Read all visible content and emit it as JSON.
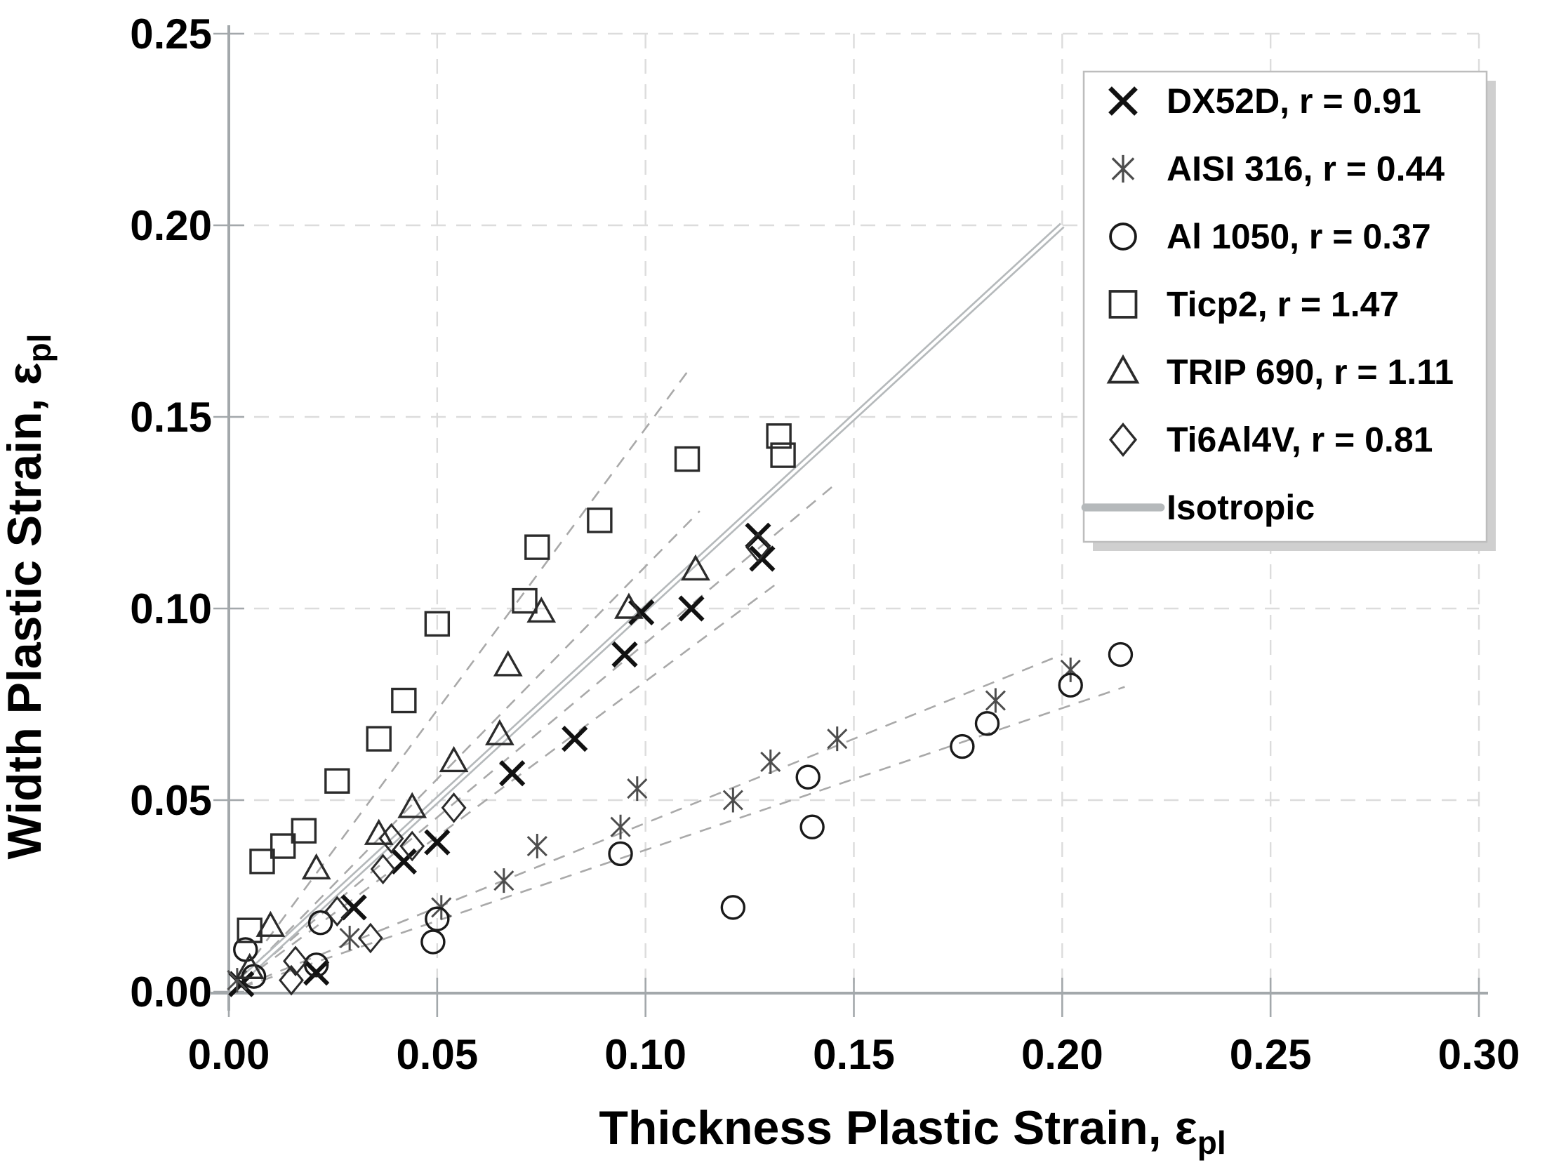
{
  "chart_data": {
    "type": "scatter",
    "title": "",
    "xlabel": {
      "text": "Thickness Plastic Strain, ε",
      "sub": "pl"
    },
    "ylabel": {
      "text": "Width Plastic Strain, ε",
      "sub": "pl"
    },
    "xlim": [
      0,
      0.3
    ],
    "ylim": [
      0,
      0.25
    ],
    "x_tick_values": [
      0,
      0.05,
      0.1,
      0.15,
      0.2,
      0.25,
      0.3
    ],
    "x_tick_labels": [
      "0.00",
      "0.05",
      "0.10",
      "0.15",
      "0.20",
      "0.25",
      "0.30"
    ],
    "y_tick_values": [
      0,
      0.05,
      0.1,
      0.15,
      0.2,
      0.25
    ],
    "y_tick_labels": [
      "0.00",
      "0.05",
      "0.10",
      "0.15",
      "0.20",
      "0.25"
    ],
    "grid": true,
    "legend_position": "top-right",
    "colors": {
      "axis": "#a3a8ab",
      "grid": "#dcdcdc",
      "trend": "#a9a9a9",
      "isotropic": "#b5b9bb",
      "legend_border": "#bdbdbd",
      "legend_shadow": "#cfcfcf",
      "background": "#ffffff"
    },
    "series": [
      {
        "name": "DX52D",
        "legend_label": "DX52D, r = 0.91",
        "r": 0.91,
        "marker": "x",
        "color": "#111111",
        "trend_x_start": 0.003,
        "trend_x_end": 0.145,
        "points": [
          [
            0.003,
            0.002
          ],
          [
            0.021,
            0.005
          ],
          [
            0.03,
            0.022
          ],
          [
            0.042,
            0.034
          ],
          [
            0.05,
            0.039
          ],
          [
            0.068,
            0.057
          ],
          [
            0.083,
            0.066
          ],
          [
            0.095,
            0.088
          ],
          [
            0.099,
            0.099
          ],
          [
            0.111,
            0.1
          ],
          [
            0.127,
            0.119
          ],
          [
            0.128,
            0.113
          ]
        ]
      },
      {
        "name": "AISI 316",
        "legend_label": "AISI 316, r = 0.44",
        "r": 0.44,
        "marker": "asterisk",
        "color": "#4d4d4d",
        "trend_x_start": 0.003,
        "trend_x_end": 0.2,
        "points": [
          [
            0.002,
            0.003
          ],
          [
            0.029,
            0.014
          ],
          [
            0.051,
            0.022
          ],
          [
            0.066,
            0.029
          ],
          [
            0.074,
            0.038
          ],
          [
            0.094,
            0.043
          ],
          [
            0.098,
            0.053
          ],
          [
            0.121,
            0.05
          ],
          [
            0.13,
            0.06
          ],
          [
            0.146,
            0.066
          ],
          [
            0.184,
            0.076
          ],
          [
            0.202,
            0.084
          ]
        ]
      },
      {
        "name": "Al 1050",
        "legend_label": "Al 1050, r = 0.37",
        "r": 0.37,
        "marker": "circle",
        "color": "#1a1a1a",
        "trend_x_start": 0.003,
        "trend_x_end": 0.215,
        "points": [
          [
            0.004,
            0.011
          ],
          [
            0.006,
            0.004
          ],
          [
            0.021,
            0.007
          ],
          [
            0.022,
            0.018
          ],
          [
            0.049,
            0.013
          ],
          [
            0.05,
            0.019
          ],
          [
            0.094,
            0.036
          ],
          [
            0.121,
            0.022
          ],
          [
            0.139,
            0.056
          ],
          [
            0.14,
            0.043
          ],
          [
            0.176,
            0.064
          ],
          [
            0.182,
            0.07
          ],
          [
            0.202,
            0.08
          ],
          [
            0.214,
            0.088
          ]
        ]
      },
      {
        "name": "Ticp2",
        "legend_label": "Ticp2, r = 1.47",
        "r": 1.47,
        "marker": "square",
        "color": "#2b2b2b",
        "trend_x_start": 0.003,
        "trend_x_end": 0.11,
        "points": [
          [
            0.005,
            0.016
          ],
          [
            0.008,
            0.034
          ],
          [
            0.013,
            0.038
          ],
          [
            0.018,
            0.042
          ],
          [
            0.026,
            0.055
          ],
          [
            0.036,
            0.066
          ],
          [
            0.042,
            0.076
          ],
          [
            0.05,
            0.096
          ],
          [
            0.071,
            0.102
          ],
          [
            0.074,
            0.116
          ],
          [
            0.089,
            0.123
          ],
          [
            0.11,
            0.139
          ],
          [
            0.132,
            0.145
          ],
          [
            0.133,
            0.14
          ]
        ]
      },
      {
        "name": "TRIP 690",
        "legend_label": "TRIP 690, r = 1.11",
        "r": 1.11,
        "marker": "triangle",
        "color": "#2b2b2b",
        "trend_x_start": 0.003,
        "trend_x_end": 0.113,
        "points": [
          [
            0.005,
            0.006
          ],
          [
            0.01,
            0.017
          ],
          [
            0.021,
            0.032
          ],
          [
            0.036,
            0.041
          ],
          [
            0.044,
            0.048
          ],
          [
            0.054,
            0.06
          ],
          [
            0.065,
            0.067
          ],
          [
            0.067,
            0.085
          ],
          [
            0.075,
            0.099
          ],
          [
            0.096,
            0.1
          ],
          [
            0.112,
            0.11
          ]
        ]
      },
      {
        "name": "Ti6Al4V",
        "legend_label": "Ti6Al4V, r = 0.81",
        "r": 0.81,
        "marker": "diamond",
        "color": "#2b2b2b",
        "trend_x_start": 0.003,
        "trend_x_end": 0.131,
        "points": [
          [
            0.015,
            0.003
          ],
          [
            0.016,
            0.008
          ],
          [
            0.026,
            0.021
          ],
          [
            0.034,
            0.014
          ],
          [
            0.037,
            0.032
          ],
          [
            0.039,
            0.04
          ],
          [
            0.044,
            0.038
          ],
          [
            0.054,
            0.048
          ],
          [
            0.127,
            0.116
          ]
        ]
      }
    ],
    "isotropic": {
      "legend_label": "Isotropic",
      "slope": 1.0,
      "x_start": 0.002,
      "x_end": 0.2
    }
  }
}
